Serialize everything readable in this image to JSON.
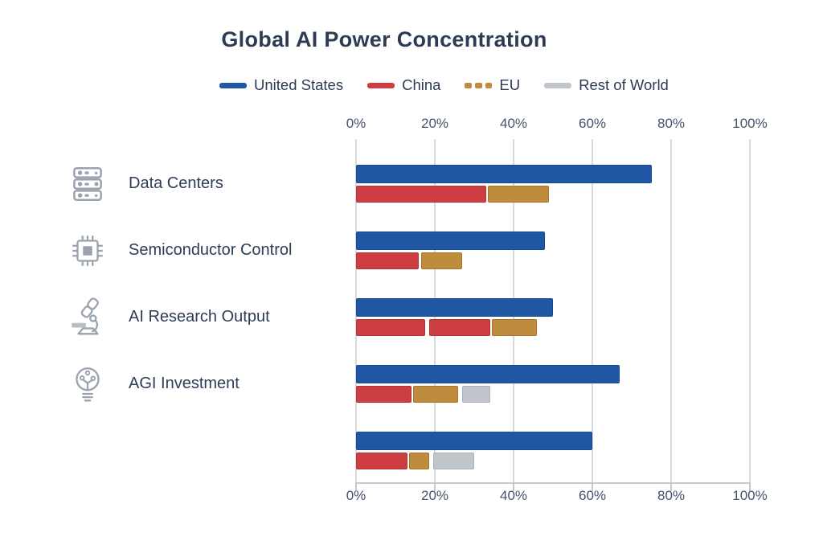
{
  "title": "Global AI Power Concentration",
  "colors": {
    "background": "#ffffff",
    "title_text": "#2d3c55",
    "category_text": "#2e3c58",
    "axis_text": "#46536b",
    "grid": "#d8d9dd",
    "icon": "#9aa2ae",
    "united_states": "#1f57a4",
    "china": "#cd3e43",
    "eu": "#bf8c3d",
    "rest_of_world": "#c1c5cc"
  },
  "legend": [
    {
      "label": "United States",
      "color": "#1f57a4",
      "border": "#164a90",
      "swatch": "solid"
    },
    {
      "label": "China",
      "color": "#cd3e43",
      "border": "#b63237",
      "swatch": "solid"
    },
    {
      "label": "EU",
      "color": "#bf8c3d",
      "border": "#a5762c",
      "swatch": "dashed"
    },
    {
      "label": "Rest of World",
      "color": "#c1c5cc",
      "border": "#adb2ba",
      "swatch": "solid"
    }
  ],
  "chart_data": {
    "type": "bar",
    "orientation": "horizontal",
    "title": "Global AI Power Concentration",
    "xlabel": "",
    "ylabel": "",
    "xlim": [
      0,
      100
    ],
    "x_ticks": [
      "0%",
      "20%",
      "40%",
      "60%",
      "80%",
      "100%"
    ],
    "grid": true,
    "legend_position": "top",
    "axis_labels_position": "top and bottom",
    "categories": [
      "Data Centers",
      "Semiconductor Control",
      "AI Research Output",
      "AGI Investment",
      ""
    ],
    "rows": [
      {
        "category": "Data Centers",
        "icon": "server-rack-icon",
        "us_bar": {
          "series": "United States",
          "value": 75
        },
        "stacked_bar": [
          {
            "series": "China",
            "start": 0,
            "end": 33
          },
          {
            "series": "EU",
            "start": 33.5,
            "end": 49
          }
        ]
      },
      {
        "category": "Semiconductor Control",
        "icon": "chip-icon",
        "us_bar": {
          "series": "United States",
          "value": 48
        },
        "stacked_bar": [
          {
            "series": "China",
            "start": 0,
            "end": 16
          },
          {
            "series": "EU",
            "start": 16.5,
            "end": 27
          }
        ]
      },
      {
        "category": "AI Research Output",
        "icon": "microscope-icon",
        "us_bar": {
          "series": "United States",
          "value": 50
        },
        "stacked_bar": [
          {
            "series": "China",
            "start": 0,
            "end": 17.5
          },
          {
            "series": "China",
            "start": 18.5,
            "end": 34
          },
          {
            "series": "EU",
            "start": 34.5,
            "end": 46
          }
        ]
      },
      {
        "category": "AGI Investment",
        "icon": "lightbulb-circuit-icon",
        "us_bar": {
          "series": "United States",
          "value": 67
        },
        "stacked_bar": [
          {
            "series": "China",
            "start": 0,
            "end": 14
          },
          {
            "series": "EU",
            "start": 14.5,
            "end": 26
          },
          {
            "series": "Rest of World",
            "start": 27,
            "end": 34
          }
        ]
      },
      {
        "category": "",
        "icon": null,
        "us_bar": {
          "series": "United States",
          "value": 60
        },
        "stacked_bar": [
          {
            "series": "China",
            "start": 0,
            "end": 13
          },
          {
            "series": "EU",
            "start": 13.5,
            "end": 18.5
          },
          {
            "series": "Rest of World",
            "start": 19.5,
            "end": 30
          }
        ]
      }
    ]
  }
}
